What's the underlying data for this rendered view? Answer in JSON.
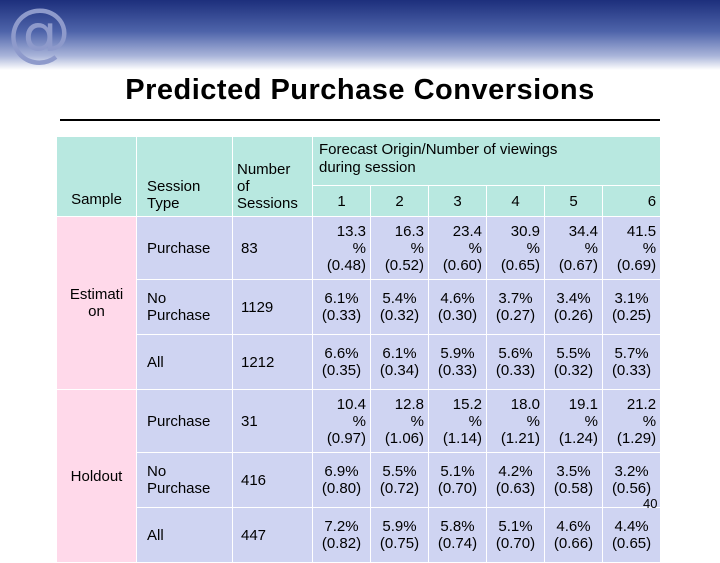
{
  "slide": {
    "logo_glyph": "@",
    "title": "Predicted Purchase Conversions",
    "page_number": "40"
  },
  "table": {
    "headers": {
      "sample": "Sample",
      "session_type": [
        "Session",
        "Type"
      ],
      "number": [
        "Number",
        "of",
        "Sessions"
      ],
      "forecast": [
        "Forecast Origin/Number of viewings",
        "during session"
      ],
      "columns": [
        "1",
        "2",
        "3",
        "4",
        "5",
        "6"
      ]
    },
    "groups": [
      {
        "sample": [
          "Estimati",
          "on"
        ],
        "rows": [
          {
            "type": [
              "Purchase"
            ],
            "sessions": "83",
            "wrap": true,
            "values": [
              [
                "13.3",
                "%",
                "(0.48)"
              ],
              [
                "16.3",
                "%",
                "(0.52)"
              ],
              [
                "23.4",
                "%",
                "(0.60)"
              ],
              [
                "30.9",
                "%",
                "(0.65)"
              ],
              [
                "34.4",
                "%",
                "(0.67)"
              ],
              [
                "41.5",
                "%",
                "(0.69)"
              ]
            ]
          },
          {
            "type": [
              "No",
              "Purchase"
            ],
            "sessions": "1129",
            "wrap": false,
            "values": [
              [
                "6.1%",
                "(0.33)"
              ],
              [
                "5.4%",
                "(0.32)"
              ],
              [
                "4.6%",
                "(0.30)"
              ],
              [
                "3.7%",
                "(0.27)"
              ],
              [
                "3.4%",
                "(0.26)"
              ],
              [
                "3.1%",
                "(0.25)"
              ]
            ]
          },
          {
            "type": [
              "All"
            ],
            "sessions": "1212",
            "wrap": false,
            "values": [
              [
                "6.6%",
                "(0.35)"
              ],
              [
                "6.1%",
                "(0.34)"
              ],
              [
                "5.9%",
                "(0.33)"
              ],
              [
                "5.6%",
                "(0.33)"
              ],
              [
                "5.5%",
                "(0.32)"
              ],
              [
                "5.7%",
                "(0.33)"
              ]
            ]
          }
        ]
      },
      {
        "sample": [
          "Holdout"
        ],
        "rows": [
          {
            "type": [
              "Purchase"
            ],
            "sessions": "31",
            "wrap": true,
            "values": [
              [
                "10.4",
                "%",
                "(0.97)"
              ],
              [
                "12.8",
                "%",
                "(1.06)"
              ],
              [
                "15.2",
                "%",
                "(1.14)"
              ],
              [
                "18.0",
                "%",
                "(1.21)"
              ],
              [
                "19.1",
                "%",
                "(1.24)"
              ],
              [
                "21.2",
                "%",
                "(1.29)"
              ]
            ]
          },
          {
            "type": [
              "No",
              "Purchase"
            ],
            "sessions": "416",
            "wrap": false,
            "values": [
              [
                "6.9%",
                "(0.80)"
              ],
              [
                "5.5%",
                "(0.72)"
              ],
              [
                "5.1%",
                "(0.70)"
              ],
              [
                "4.2%",
                "(0.63)"
              ],
              [
                "3.5%",
                "(0.58)"
              ],
              [
                "3.2%",
                "(0.56)"
              ]
            ]
          },
          {
            "type": [
              "All"
            ],
            "sessions": "447",
            "wrap": false,
            "values": [
              [
                "7.2%",
                "(0.82)"
              ],
              [
                "5.9%",
                "(0.75)"
              ],
              [
                "5.8%",
                "(0.74)"
              ],
              [
                "5.1%",
                "(0.70)"
              ],
              [
                "4.6%",
                "(0.66)"
              ],
              [
                "4.4%",
                "(0.65)"
              ]
            ]
          }
        ]
      }
    ]
  },
  "colors": {
    "header_bg": "#b8e8e0",
    "pink_bg": "#ffd9ea",
    "lavender_bg": "#cfd4f2",
    "banner_dark": "#1d2f7c"
  }
}
